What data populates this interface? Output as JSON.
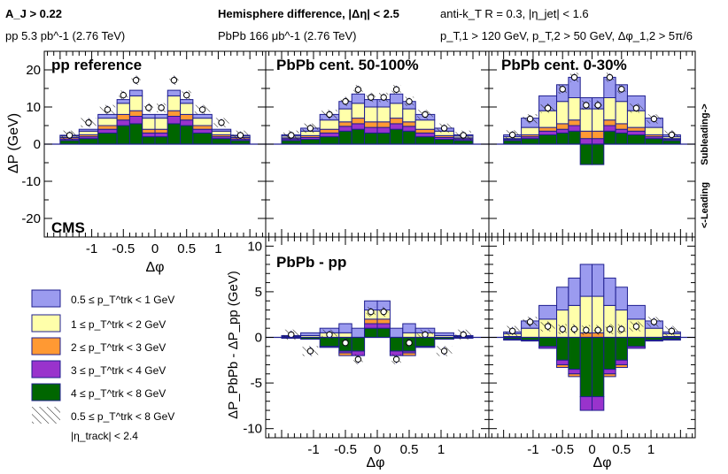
{
  "header": {
    "aj": "A_J > 0.22",
    "pp_lumi": "pp 5.3 pb^-1 (2.76 TeV)",
    "title": "Hemisphere difference, |Δη| < 2.5",
    "pbpb_lumi": "PbPb 166 μb^-1 (2.76 TeV)",
    "jet_def": "anti-k_T R = 0.3, |η_jet| < 1.6",
    "pt_cuts": "p_T,1 > 120 GeV, p_T,2 > 50 GeV, Δφ_1,2 > 5π/6"
  },
  "labels": {
    "cms": "CMS",
    "subleading": "Subleading->",
    "leading": "<-Leading",
    "eta_track": "|η_track| < 2.4",
    "top_ylabel": "ΔP (GeV)",
    "bottom_ylabel": "ΔP_PbPb - ΔP_pp (GeV)",
    "xlabel": "Δφ"
  },
  "colors": {
    "blue": "#9b9bef",
    "yellow": "#ffffaa",
    "orange": "#ff9933",
    "purple": "#9933cc",
    "green": "#006600",
    "edge": "#1f1f8f"
  },
  "chart_data": [
    {
      "panel": "top-left",
      "type": "bar",
      "stacked": true,
      "title": "pp reference",
      "bins_dphi": [
        -1.5,
        -1.2,
        -0.9,
        -0.6,
        -0.4,
        -0.2,
        0,
        0.2,
        0.4,
        0.6,
        0.9,
        1.2,
        1.5
      ],
      "ylim": [
        -25,
        25
      ],
      "yticks": [
        -20,
        -10,
        0,
        10,
        20
      ],
      "series": [
        {
          "name": "4-8",
          "values": [
            1.0,
            1.5,
            3.0,
            5.0,
            5.5,
            2.0,
            2.0,
            5.5,
            5.0,
            3.0,
            1.5,
            1.0
          ]
        },
        {
          "name": "3-4",
          "values": [
            0.4,
            0.5,
            1.0,
            1.5,
            2.0,
            1.0,
            1.0,
            2.0,
            1.5,
            1.0,
            0.5,
            0.4
          ]
        },
        {
          "name": "2-3",
          "values": [
            0.4,
            0.5,
            1.0,
            1.5,
            1.5,
            1.0,
            1.0,
            1.5,
            1.5,
            1.0,
            0.5,
            0.4
          ]
        },
        {
          "name": "1-2",
          "values": [
            0.4,
            1.0,
            2.0,
            3.0,
            4.0,
            3.0,
            3.0,
            4.0,
            3.0,
            2.0,
            1.0,
            0.4
          ]
        },
        {
          "name": "0.5-1",
          "values": [
            0.2,
            0.5,
            1.0,
            1.0,
            1.5,
            1.0,
            1.0,
            1.5,
            1.0,
            1.0,
            0.5,
            0.2
          ]
        }
      ],
      "points": [
        2.4,
        5.8,
        9.3,
        13.2,
        17.2,
        9.8,
        9.8,
        17.2,
        13.2,
        9.3,
        5.8,
        2.4
      ]
    },
    {
      "panel": "top-middle",
      "type": "bar",
      "stacked": true,
      "title": "PbPb cent. 50-100%",
      "bins_dphi": [
        -1.5,
        -1.2,
        -0.9,
        -0.6,
        -0.4,
        -0.2,
        0,
        0.2,
        0.4,
        0.6,
        0.9,
        1.2,
        1.5
      ],
      "ylim": [
        -25,
        25
      ],
      "series": [
        {
          "name": "4-8",
          "values": [
            1.0,
            1.3,
            2.0,
            3.5,
            4.0,
            3.0,
            3.0,
            4.0,
            3.5,
            2.0,
            1.3,
            1.0
          ]
        },
        {
          "name": "3-4",
          "values": [
            0.4,
            0.5,
            1.0,
            1.3,
            1.5,
            1.5,
            1.5,
            1.5,
            1.3,
            1.0,
            0.5,
            0.4
          ]
        },
        {
          "name": "2-3",
          "values": [
            0.3,
            0.5,
            1.0,
            1.2,
            1.5,
            1.5,
            1.5,
            1.5,
            1.2,
            1.0,
            0.5,
            0.3
          ]
        },
        {
          "name": "1-2",
          "values": [
            0.5,
            1.2,
            2.5,
            3.5,
            4.0,
            4.0,
            4.0,
            4.0,
            3.5,
            2.5,
            1.2,
            0.5
          ]
        },
        {
          "name": "0.5-1",
          "values": [
            0.3,
            0.8,
            1.5,
            2.0,
            2.5,
            2.0,
            2.0,
            2.5,
            2.0,
            1.5,
            0.8,
            0.3
          ]
        }
      ],
      "points": [
        2.4,
        4.3,
        8.0,
        11.5,
        14.7,
        12.6,
        12.6,
        14.7,
        11.5,
        8.0,
        4.3,
        2.4
      ]
    },
    {
      "panel": "top-right",
      "type": "bar",
      "stacked": true,
      "title": "PbPb cent. 0-30%",
      "bins_dphi": [
        -1.5,
        -1.2,
        -0.9,
        -0.6,
        -0.4,
        -0.2,
        0,
        0.2,
        0.4,
        0.6,
        0.9,
        1.2,
        1.5
      ],
      "ylim": [
        -25,
        25
      ],
      "series": [
        {
          "name": "4-8",
          "values": [
            1.0,
            1.5,
            2.5,
            3.0,
            3.5,
            -5.5,
            -5.5,
            3.5,
            3.0,
            2.5,
            1.5,
            1.0
          ]
        },
        {
          "name": "3-4",
          "values": [
            0.3,
            0.5,
            1.0,
            1.0,
            1.5,
            1.5,
            1.5,
            1.5,
            1.0,
            1.0,
            0.5,
            0.3
          ]
        },
        {
          "name": "2-3",
          "values": [
            0.2,
            0.5,
            1.0,
            1.5,
            1.5,
            2.0,
            2.0,
            1.5,
            1.5,
            1.0,
            0.5,
            0.2
          ]
        },
        {
          "name": "1-2",
          "values": [
            0.5,
            2.0,
            4.5,
            6.0,
            6.0,
            6.0,
            6.0,
            6.0,
            6.0,
            4.5,
            2.0,
            0.5
          ]
        },
        {
          "name": "0.5-1",
          "values": [
            0.5,
            2.5,
            4.0,
            4.5,
            5.5,
            3.0,
            3.0,
            5.5,
            4.5,
            4.0,
            2.5,
            0.5
          ]
        }
      ],
      "points": [
        2.5,
        6.8,
        9.7,
        14.8,
        18.0,
        10.5,
        10.5,
        18.0,
        14.8,
        9.7,
        6.8,
        2.5
      ]
    },
    {
      "panel": "bottom-middle",
      "type": "bar",
      "stacked": true,
      "title": "PbPb - pp",
      "bins_dphi": [
        -1.5,
        -1.2,
        -0.9,
        -0.6,
        -0.4,
        -0.2,
        0,
        0.2,
        0.4,
        0.6,
        0.9,
        1.2,
        1.5
      ],
      "ylim": [
        -11,
        11
      ],
      "yticks": [
        -10,
        -5,
        0,
        5,
        10
      ],
      "series": [
        {
          "name": "4-8",
          "values": [
            0.0,
            -0.2,
            -1.0,
            -1.5,
            -1.5,
            1.0,
            1.0,
            -1.5,
            -1.5,
            -1.0,
            -0.2,
            0.0
          ]
        },
        {
          "name": "3-4",
          "values": [
            0.0,
            0.0,
            -0.1,
            -0.2,
            -0.5,
            0.5,
            0.5,
            -0.5,
            -0.2,
            -0.1,
            0.0,
            0.0
          ]
        },
        {
          "name": "2-3",
          "values": [
            -0.1,
            0.0,
            0.0,
            -0.3,
            0.0,
            0.5,
            0.5,
            0.0,
            -0.3,
            0.0,
            0.0,
            -0.1
          ]
        },
        {
          "name": "1-2",
          "values": [
            0.1,
            0.2,
            0.5,
            0.5,
            0.0,
            1.0,
            1.0,
            0.0,
            0.5,
            0.5,
            0.2,
            0.1
          ]
        },
        {
          "name": "0.5-1",
          "values": [
            0.1,
            0.3,
            0.5,
            1.0,
            1.0,
            1.0,
            1.0,
            1.0,
            1.0,
            0.5,
            0.3,
            0.1
          ]
        }
      ],
      "points": [
        0.3,
        -1.5,
        0.3,
        -0.6,
        -2.4,
        2.8,
        2.8,
        -2.4,
        -0.6,
        0.3,
        -1.5,
        0.3
      ]
    },
    {
      "panel": "bottom-right",
      "type": "bar",
      "stacked": true,
      "bins_dphi": [
        -1.5,
        -1.2,
        -0.9,
        -0.6,
        -0.4,
        -0.2,
        0,
        0.2,
        0.4,
        0.6,
        0.9,
        1.2,
        1.5
      ],
      "ylim": [
        -11,
        11
      ],
      "series": [
        {
          "name": "4-8",
          "values": [
            -0.2,
            -0.3,
            -1.0,
            -2.5,
            -3.5,
            -6.5,
            -6.5,
            -3.5,
            -2.5,
            -1.0,
            -0.3,
            -0.2
          ]
        },
        {
          "name": "3-4",
          "values": [
            -0.1,
            -0.1,
            -0.2,
            -0.5,
            -0.5,
            -1.5,
            -1.5,
            -0.5,
            -0.5,
            -0.2,
            -0.1,
            -0.1
          ]
        },
        {
          "name": "2-3",
          "values": [
            0.1,
            0.0,
            0.0,
            -0.3,
            -0.3,
            0.5,
            0.5,
            -0.3,
            -0.3,
            0.0,
            0.0,
            0.1
          ]
        },
        {
          "name": "1-2",
          "values": [
            0.3,
            1.0,
            2.0,
            3.0,
            3.5,
            4.0,
            4.0,
            3.5,
            3.0,
            2.0,
            1.0,
            0.3
          ]
        },
        {
          "name": "0.5-1",
          "values": [
            0.2,
            0.8,
            1.5,
            2.5,
            3.0,
            3.5,
            3.5,
            3.0,
            2.5,
            1.5,
            0.8,
            0.2
          ]
        }
      ],
      "points": [
        0.7,
        1.7,
        1.2,
        0.9,
        0.9,
        0.8,
        0.8,
        0.9,
        0.9,
        1.2,
        1.7,
        0.7
      ]
    }
  ],
  "legend": [
    {
      "key": "blue",
      "text": "0.5 ≤ p_T^trk < 1 GeV"
    },
    {
      "key": "yellow",
      "text": "1 ≤ p_T^trk < 2 GeV"
    },
    {
      "key": "orange",
      "text": "2 ≤ p_T^trk < 3 GeV"
    },
    {
      "key": "purple",
      "text": "3 ≤ p_T^trk < 4 GeV"
    },
    {
      "key": "green",
      "text": "4 ≤ p_T^trk < 8 GeV"
    },
    {
      "key": "hatch",
      "text": "0.5 ≤ p_T^trk < 8 GeV"
    }
  ],
  "xticks": [
    "-1",
    "-0.5",
    "0",
    "0.5",
    "1"
  ]
}
